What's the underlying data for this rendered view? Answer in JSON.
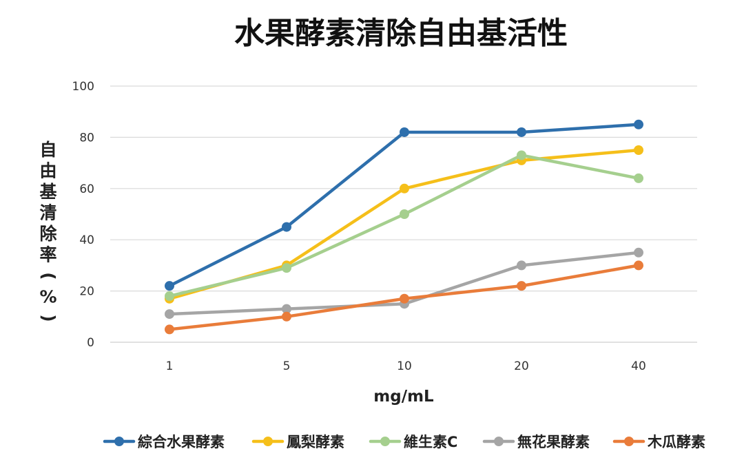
{
  "chart_data": {
    "type": "line",
    "title": "水果酵素清除自由基活性",
    "xlabel": "mg/mL",
    "ylabel": "自由基清除率(%)",
    "categories": [
      "1",
      "5",
      "10",
      "20",
      "40"
    ],
    "ylim": [
      0,
      100
    ],
    "yticks": [
      0,
      20,
      40,
      60,
      80,
      100
    ],
    "grid": true,
    "legend_position": "bottom",
    "series": [
      {
        "name": "綜合水果酵素",
        "color": "#2E6FAC",
        "values": [
          22,
          45,
          82,
          82,
          85
        ]
      },
      {
        "name": "鳳梨酵素",
        "color": "#F5BF1A",
        "values": [
          17,
          30,
          60,
          71,
          75
        ]
      },
      {
        "name": "維生素C",
        "color": "#A5CF8E",
        "values": [
          18,
          29,
          50,
          73,
          64
        ]
      },
      {
        "name": "無花果酵素",
        "color": "#A5A5A5",
        "values": [
          11,
          13,
          15,
          30,
          35
        ]
      },
      {
        "name": "木瓜酵素",
        "color": "#E97C3A",
        "values": [
          5,
          10,
          17,
          22,
          30
        ]
      }
    ]
  }
}
